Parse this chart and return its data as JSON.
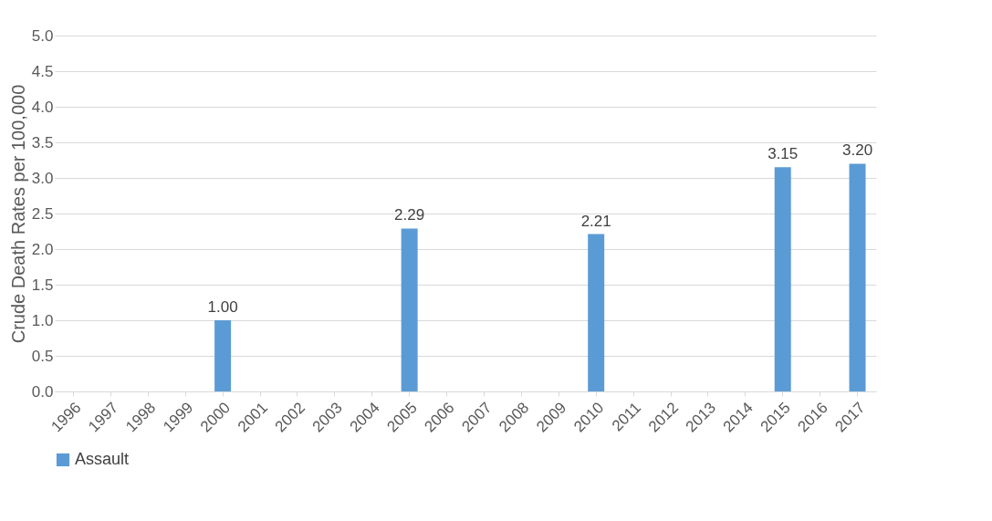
{
  "chart_data": {
    "type": "bar",
    "ylabel": "Crude Death Rates per 100,000",
    "categories": [
      "1996",
      "1997",
      "1998",
      "1999",
      "2000",
      "2001",
      "2002",
      "2003",
      "2004",
      "2005",
      "2006",
      "2007",
      "2008",
      "2009",
      "2010",
      "2011",
      "2012",
      "2013",
      "2014",
      "2015",
      "2016",
      "2017"
    ],
    "series": [
      {
        "name": "Assault",
        "color": "#5b9bd5",
        "values": [
          null,
          null,
          null,
          null,
          1.0,
          null,
          null,
          null,
          null,
          2.29,
          null,
          null,
          null,
          null,
          2.21,
          null,
          null,
          null,
          null,
          3.15,
          null,
          3.2
        ],
        "value_labels": [
          null,
          null,
          null,
          null,
          "1.00",
          null,
          null,
          null,
          null,
          "2.29",
          null,
          null,
          null,
          null,
          "2.21",
          null,
          null,
          null,
          null,
          "3.15",
          null,
          "3.20"
        ]
      }
    ],
    "ylim": [
      0,
      5
    ],
    "yticks": [
      {
        "value": 0,
        "label": "0.0"
      },
      0.5,
      {
        "value": 1,
        "label": "1.0"
      },
      1.5,
      {
        "value": 2,
        "label": "2.0"
      },
      2.5,
      {
        "value": 3,
        "label": "3.0"
      },
      3.5,
      {
        "value": 4,
        "label": "4.0"
      },
      4.5,
      {
        "value": 5,
        "label": "5.0"
      }
    ],
    "grid": "y",
    "legend": "bottom"
  }
}
